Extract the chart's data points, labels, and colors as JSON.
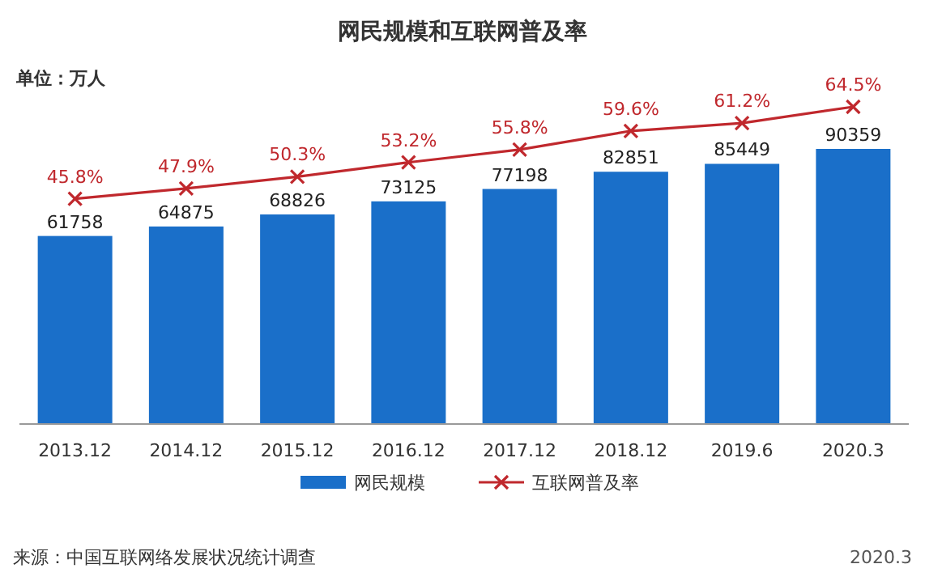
{
  "chart_data": {
    "type": "bar",
    "title": "网民规模和互联网普及率",
    "ylabel": "单位：万人",
    "categories": [
      "2013.12",
      "2014.12",
      "2015.12",
      "2016.12",
      "2017.12",
      "2018.12",
      "2019.6",
      "2020.3"
    ],
    "series": [
      {
        "name": "网民规模",
        "color": "#1a6fc9",
        "values": [
          61758,
          64875,
          68826,
          73125,
          77198,
          82851,
          85449,
          90359
        ]
      },
      {
        "name": "互联网普及率",
        "type": "line",
        "axis": "y2",
        "color": "#c0282d",
        "marker": "cross",
        "values": [
          45.8,
          47.9,
          50.3,
          53.2,
          55.8,
          59.6,
          61.2,
          64.5
        ],
        "value_labels": [
          "45.8%",
          "47.9%",
          "50.3%",
          "53.2%",
          "55.8%",
          "59.6%",
          "61.2%",
          "64.5%"
        ]
      }
    ],
    "tick_labels": "x",
    "data_labels": true,
    "legend": "bottom",
    "annotations": [
      "来源：中国互联网络发展状况统计调查",
      "2020.3"
    ]
  }
}
